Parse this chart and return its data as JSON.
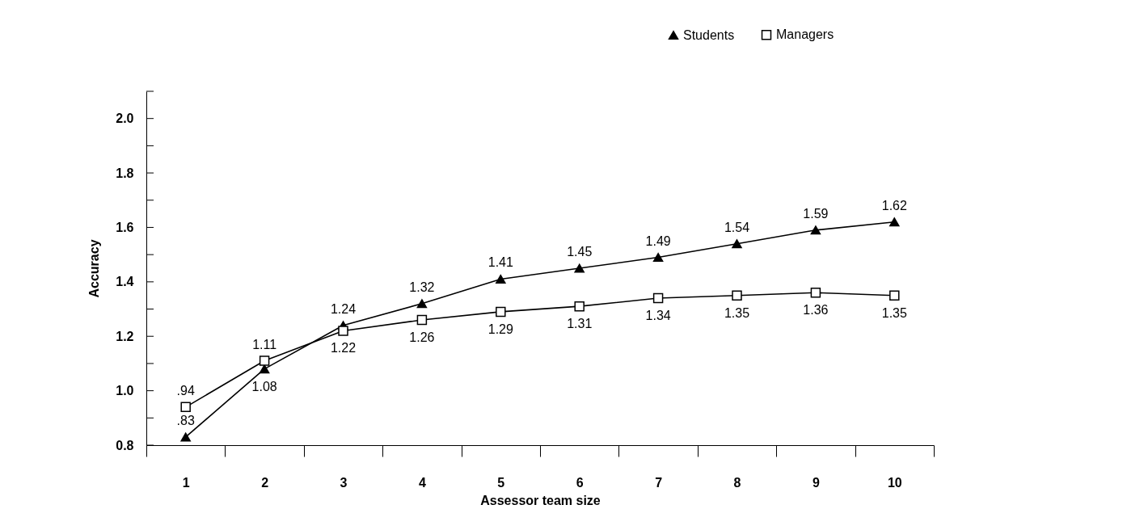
{
  "chart_data": {
    "type": "line",
    "xlabel": "Assessor team size",
    "ylabel": "Accuracy",
    "categories": [
      "1",
      "2",
      "3",
      "4",
      "5",
      "6",
      "7",
      "8",
      "9",
      "10"
    ],
    "series": [
      {
        "name": "Students",
        "color": "#000000",
        "marker": "triangle",
        "values": [
          0.83,
          1.08,
          1.24,
          1.32,
          1.41,
          1.45,
          1.49,
          1.54,
          1.59,
          1.62
        ],
        "value_labels": [
          ".83",
          "1.08",
          "1.24",
          "1.32",
          "1.41",
          "1.45",
          "1.49",
          "1.54",
          "1.59",
          "1.62"
        ]
      },
      {
        "name": "Managers",
        "color": "#000000",
        "marker": "square",
        "values": [
          0.94,
          1.11,
          1.22,
          1.26,
          1.29,
          1.31,
          1.34,
          1.35,
          1.36,
          1.35
        ],
        "value_labels": [
          ".94",
          "1.11",
          "1.22",
          "1.26",
          "1.29",
          "1.31",
          "1.34",
          "1.35",
          "1.36",
          "1.35"
        ]
      }
    ],
    "ylim": [
      0.8,
      2.1
    ],
    "yticks": [
      0.8,
      {
        "value": 0.9,
        "label": null
      },
      {
        "value": 1,
        "label": "1.0"
      },
      {
        "value": 1.1,
        "label": null
      },
      1.2,
      {
        "value": 1.3,
        "label": null
      },
      1.4,
      {
        "value": 1.5,
        "label": null
      },
      1.6,
      {
        "value": 1.7,
        "label": null
      },
      1.8,
      {
        "value": 1.9,
        "label": null
      },
      {
        "value": 2,
        "label": "2.0"
      },
      {
        "value": 2.1,
        "label": null
      }
    ],
    "legend": "top right",
    "grid": false
  }
}
